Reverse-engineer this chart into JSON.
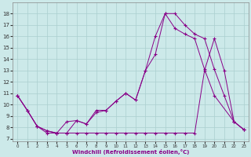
{
  "xlabel": "Windchill (Refroidissement éolien,°C)",
  "xlim": [
    -0.5,
    23.5
  ],
  "ylim": [
    6.8,
    19.0
  ],
  "yticks": [
    7,
    8,
    9,
    10,
    11,
    12,
    13,
    14,
    15,
    16,
    17,
    18
  ],
  "xticks": [
    0,
    1,
    2,
    3,
    4,
    5,
    6,
    7,
    8,
    9,
    10,
    11,
    12,
    13,
    14,
    15,
    16,
    17,
    18,
    19,
    20,
    21,
    22,
    23
  ],
  "background_color": "#cce9e9",
  "grid_color": "#aacfcf",
  "line_color": "#880088",
  "line1_x": [
    0,
    1,
    2,
    3,
    4,
    5,
    6,
    7,
    8,
    9,
    10,
    11,
    12,
    13,
    14,
    15,
    16,
    17,
    18,
    19,
    20,
    21,
    22,
    23
  ],
  "line1_y": [
    10.8,
    9.5,
    8.1,
    7.5,
    7.5,
    8.5,
    8.6,
    8.3,
    9.3,
    9.5,
    10.3,
    11.0,
    10.4,
    13.0,
    14.4,
    18.0,
    18.0,
    17.0,
    16.2,
    15.8,
    13.1,
    10.8,
    8.5,
    7.8
  ],
  "line2_x": [
    0,
    1,
    2,
    3,
    4,
    5,
    6,
    7,
    8,
    9,
    10,
    11,
    12,
    13,
    14,
    15,
    16,
    17,
    18,
    19,
    20,
    22,
    23
  ],
  "line2_y": [
    10.8,
    9.5,
    8.1,
    7.7,
    7.5,
    7.5,
    8.6,
    8.3,
    9.5,
    9.5,
    10.3,
    11.0,
    10.4,
    13.0,
    16.0,
    18.0,
    16.7,
    16.2,
    15.8,
    13.1,
    10.8,
    8.5,
    7.8
  ],
  "line3_x": [
    0,
    1,
    2,
    3,
    4,
    5,
    6,
    7,
    8,
    9,
    10,
    11,
    12,
    13,
    14,
    15,
    16,
    17,
    18,
    19,
    20,
    21,
    22,
    23
  ],
  "line3_y": [
    10.8,
    9.5,
    8.1,
    7.7,
    7.5,
    7.5,
    7.5,
    7.5,
    7.5,
    7.5,
    7.5,
    7.5,
    7.5,
    7.5,
    7.5,
    7.5,
    7.5,
    7.5,
    7.5,
    13.0,
    15.8,
    13.0,
    8.5,
    7.8
  ]
}
